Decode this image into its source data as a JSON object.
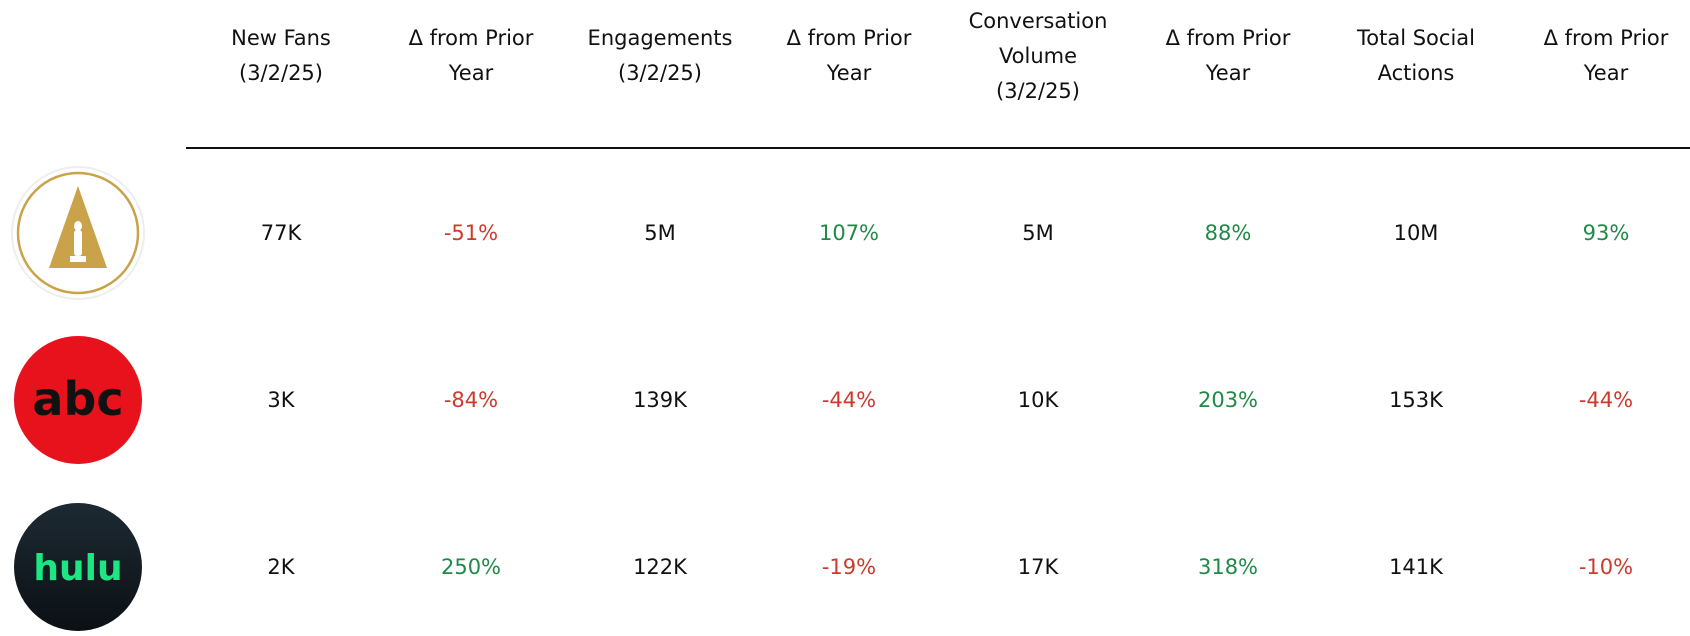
{
  "table": {
    "header": [
      [
        "New Fans",
        "(3/2/25)"
      ],
      [
        "Δ from Prior",
        "Year"
      ],
      [
        "Engagements",
        "(3/2/25)"
      ],
      [
        "Δ from Prior",
        "Year"
      ],
      [
        "Conversation",
        "Volume",
        "(3/2/25)"
      ],
      [
        "Δ from Prior",
        "Year"
      ],
      [
        "Total Social",
        "Actions"
      ],
      [
        "Δ from Prior",
        "Year"
      ]
    ],
    "rows": [
      {
        "cells": [
          "77K",
          "-51%",
          "5M",
          "107%",
          "5M",
          "88%",
          "10M",
          "93%"
        ]
      },
      {
        "logo": "abc",
        "cells": [
          "3K",
          "-84%",
          "139K",
          "-44%",
          "10K",
          "203%",
          "153K",
          "-44%"
        ]
      },
      {
        "logo": "hulu",
        "cells": [
          "2K",
          "250%",
          "122K",
          "-19%",
          "17K",
          "318%",
          "141K",
          "-10%"
        ]
      }
    ]
  }
}
